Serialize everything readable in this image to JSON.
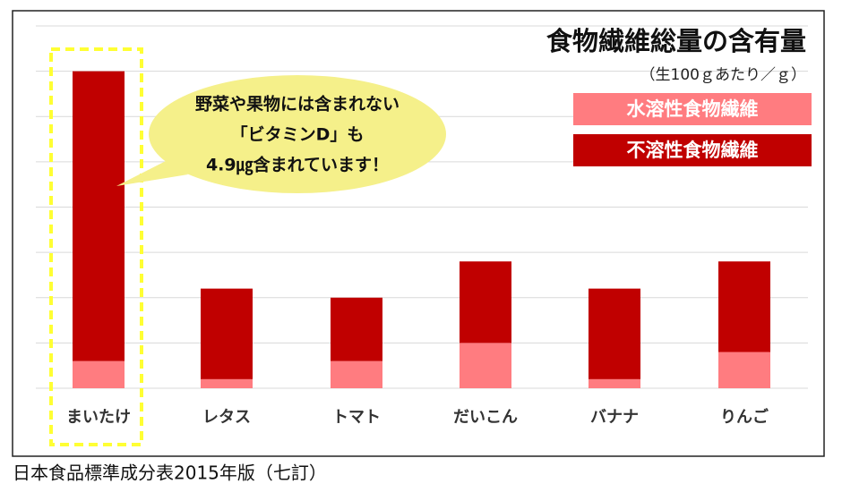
{
  "chart_data": {
    "type": "bar",
    "stacked": true,
    "title": "食物繊維総量の含有量",
    "subtitle": "（生100ｇあたり／ｇ）",
    "callout": [
      "野菜や果物には含まれない",
      "「ビタミンD」も",
      "4.9㎍含まれています！"
    ],
    "source": "日本食品標準成分表2015年版（七訂）",
    "categories": [
      "まいたけ",
      "レタス",
      "トマト",
      "だいこん",
      "バナナ",
      "りんご"
    ],
    "series": [
      {
        "name": "水溶性食物繊維",
        "color": "#ff7c80",
        "values": [
          0.3,
          0.1,
          0.3,
          0.5,
          0.1,
          0.4
        ]
      },
      {
        "name": "不溶性食物繊維",
        "color": "#c00000",
        "values": [
          3.2,
          1.0,
          0.7,
          0.9,
          1.0,
          1.0
        ]
      }
    ],
    "ylim": [
      0,
      4
    ],
    "grid": true,
    "highlight_color": "#ffff33",
    "callout_color": "#f5f08a"
  }
}
